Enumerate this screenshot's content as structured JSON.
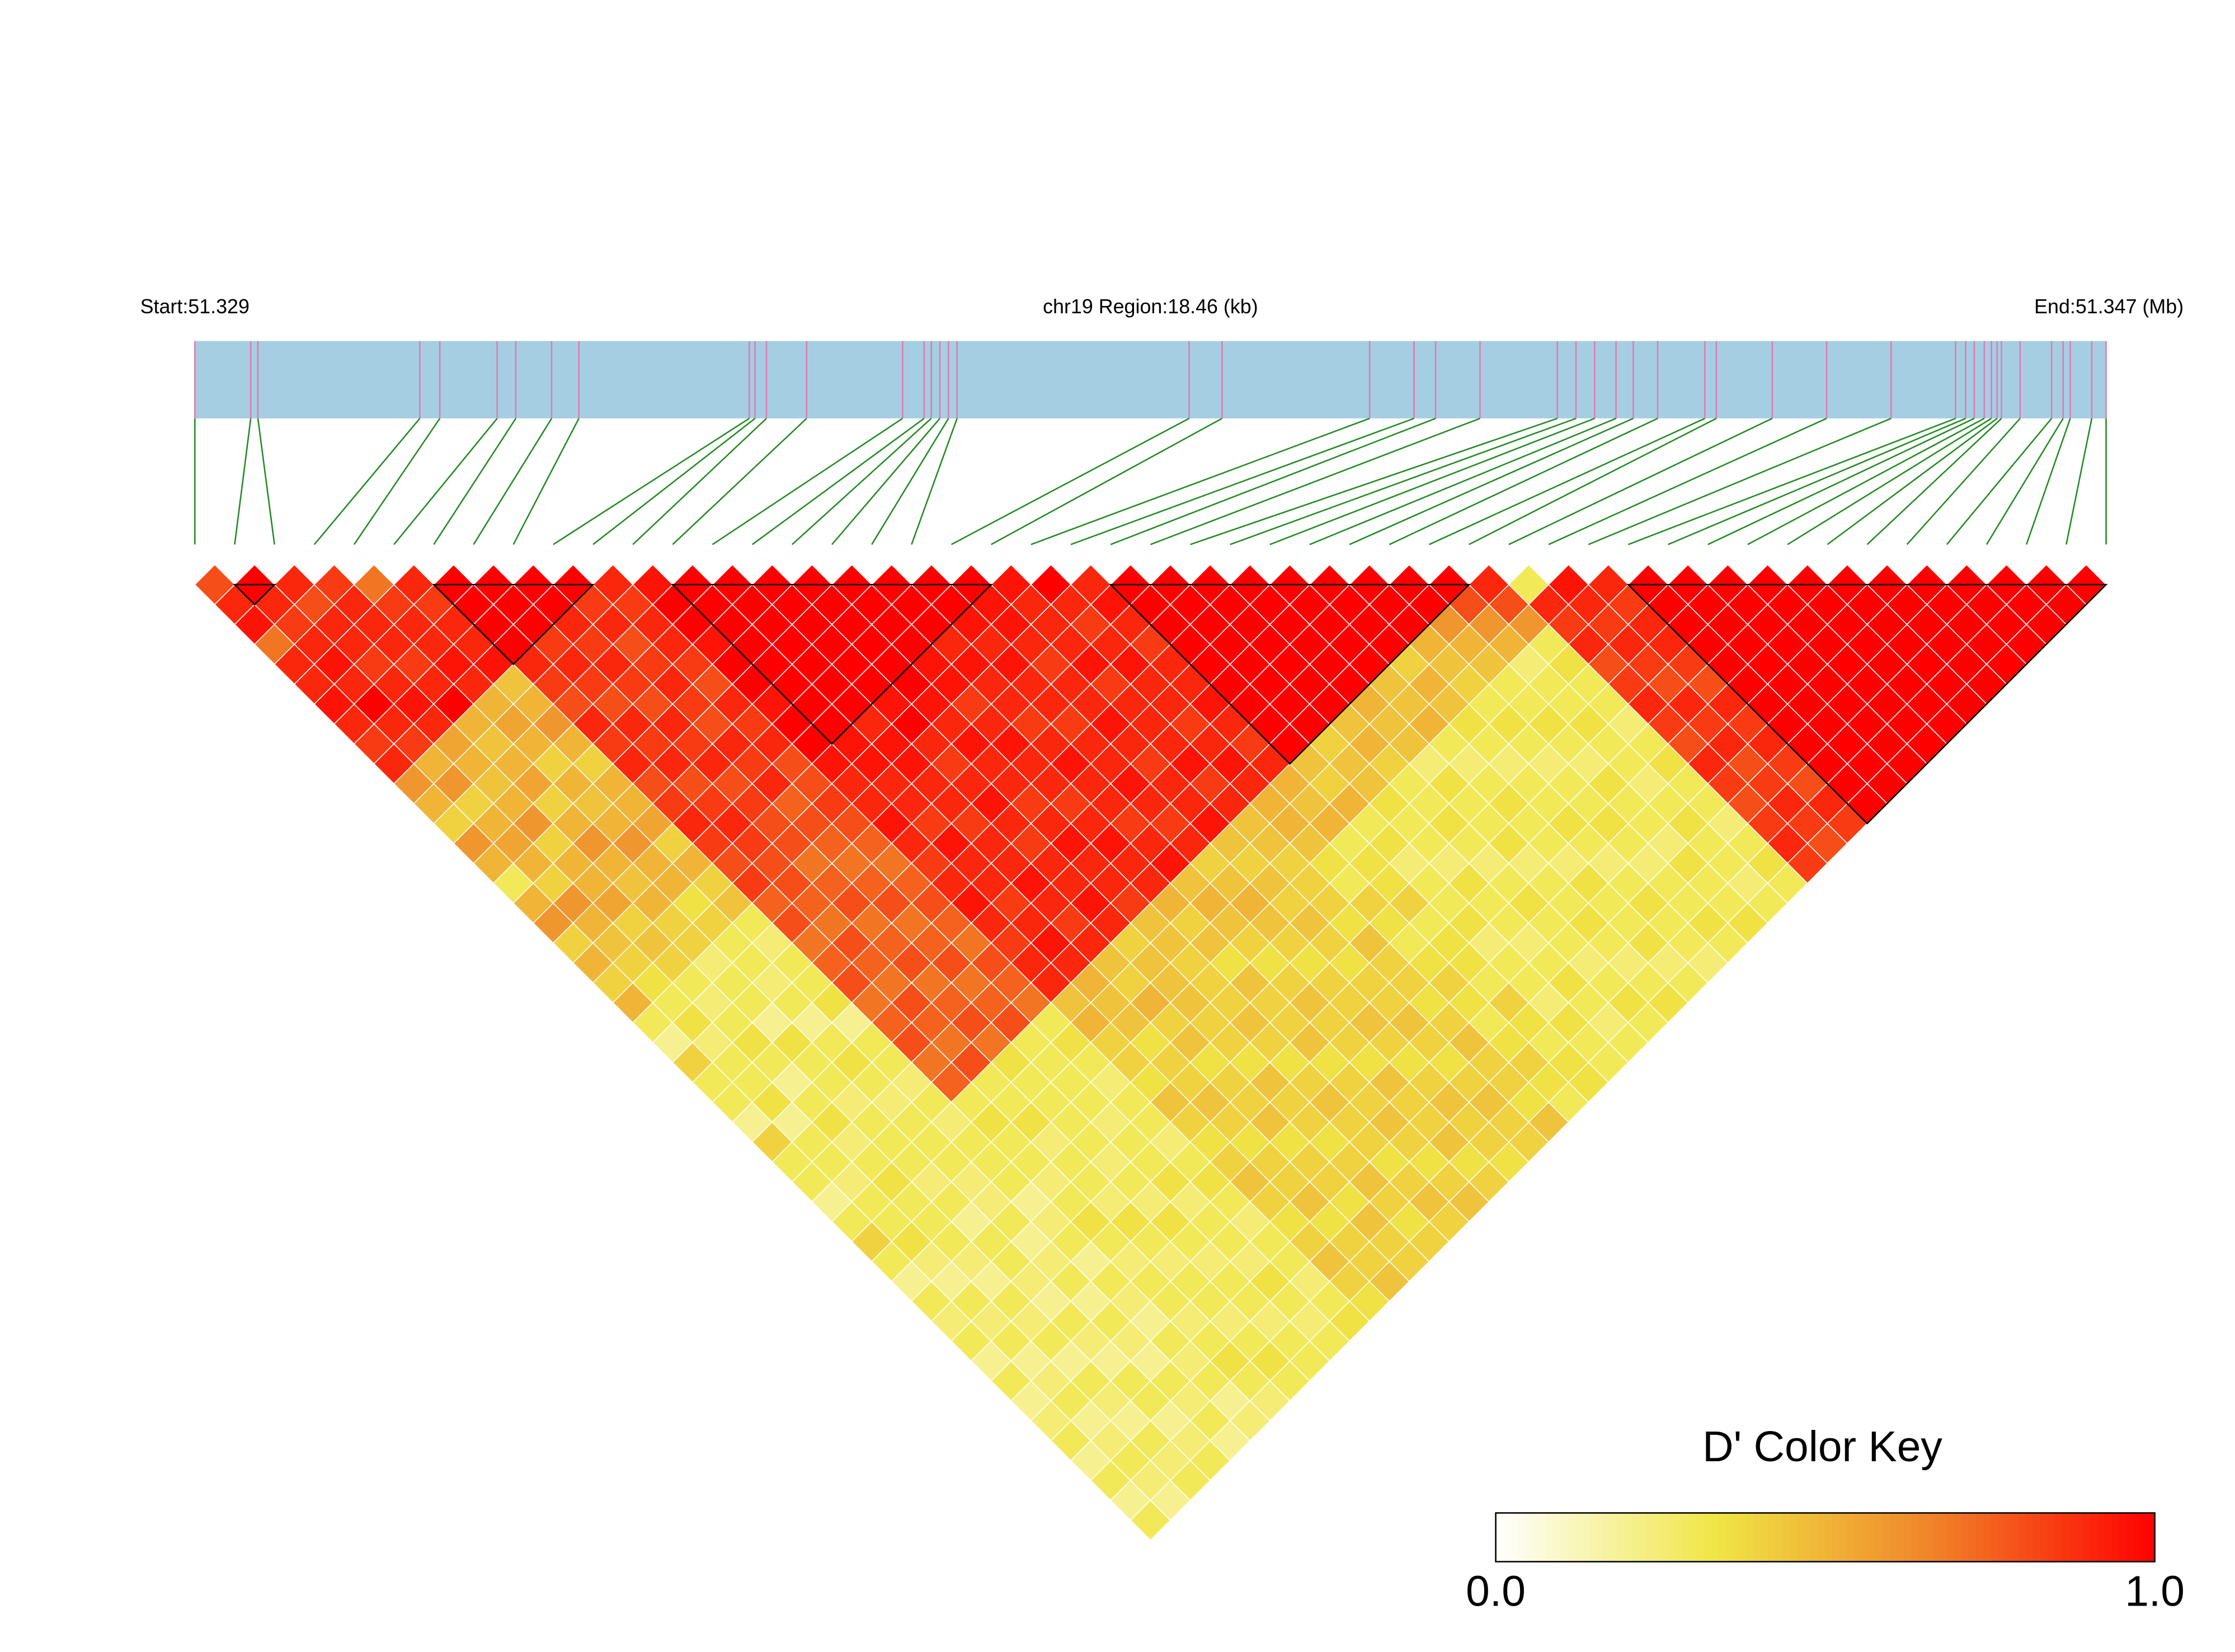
{
  "chart_data": {
    "type": "ld_heatmap",
    "start_label": "Start:51.329",
    "region_label": "chr19 Region:18.46 (kb)",
    "end_label": "End:51.347 (Mb)",
    "key_title": "D' Color Key",
    "xlim": [
      51.329,
      51.34746
    ],
    "snp_positions": [
      51.329,
      51.32954,
      51.329609,
      51.331173,
      51.331366,
      51.33192,
      51.3321,
      51.332446,
      51.332709,
      51.334355,
      51.334411,
      51.334521,
      51.334909,
      51.335836,
      51.336044,
      51.336113,
      51.336196,
      51.336279,
      51.336362,
      51.338604,
      51.338922,
      51.340347,
      51.340776,
      51.340984,
      51.341413,
      51.34216,
      51.34234,
      51.34252,
      51.342727,
      51.342893,
      51.343129,
      51.343585,
      51.343696,
      51.344236,
      51.344761,
      51.345384,
      51.346007,
      51.346104,
      51.346187,
      51.346284,
      51.346353,
      51.346408,
      51.34645,
      51.34663,
      51.346934,
      51.347045,
      51.347114,
      51.347322,
      51.34746
    ],
    "bar_color": "#a6cee3",
    "snp_line_color": "#e07ab0",
    "connector_color": "#228b22",
    "blocks": [
      {
        "start": 1,
        "end": 2
      },
      {
        "start": 6,
        "end": 10
      },
      {
        "start": 12,
        "end": 20
      },
      {
        "start": 23,
        "end": 32
      },
      {
        "start": 36,
        "end": 48
      }
    ],
    "clim": [
      0,
      1
    ],
    "cticks": [
      {
        "value": 0,
        "label": "0.0"
      },
      {
        "value": 1,
        "label": "1.0"
      }
    ],
    "colors": [
      "#ffffff",
      "#f0e646",
      "#f08228",
      "#ff0000"
    ],
    "dprime": [
      [
        0.8,
        0.9,
        0.95,
        0.7,
        0.9,
        0.9,
        0.95,
        0.9,
        0.85,
        0.9,
        0.6,
        0.5,
        0.4,
        0.6,
        0.5,
        0.3,
        0.5,
        0.6,
        0.4,
        0.5,
        0.4,
        0.5,
        0.3,
        0.2,
        0.4,
        0.3,
        0.3,
        0.2,
        0.4,
        0.3,
        0.3,
        0.2,
        0.3,
        0.4,
        0.3,
        0.2,
        0.3,
        0.25,
        0.3,
        0.2,
        0.3,
        0.2,
        0.25,
        0.3,
        0.2,
        0.3,
        0.2,
        0.3
      ],
      [
        1,
        0.9,
        0.85,
        0.9,
        0.95,
        0.9,
        1,
        0.9,
        0.85,
        0.5,
        0.6,
        0.4,
        0.5,
        0.55,
        0.5,
        0.4,
        0.6,
        0.5,
        0.45,
        0.4,
        0.35,
        0.3,
        0.35,
        0.25,
        0.3,
        0.3,
        0.35,
        0.2,
        0.3,
        0.3,
        0.25,
        0.3,
        0.3,
        0.35,
        0.25,
        0.2,
        0.3,
        0.25,
        0.3,
        0.2,
        0.25,
        0.3,
        0.2,
        0.25,
        0.3,
        0.25,
        0.2
      ],
      [
        0.9,
        0.8,
        0.9,
        0.9,
        0.85,
        0.9,
        0.95,
        0.9,
        0.55,
        0.5,
        0.45,
        0.5,
        0.6,
        0.4,
        0.5,
        0.5,
        0.55,
        0.4,
        0.45,
        0.4,
        0.3,
        0.25,
        0.3,
        0.35,
        0.3,
        0.2,
        0.3,
        0.35,
        0.25,
        0.3,
        0.35,
        0.3,
        0.3,
        0.3,
        0.25,
        0.2,
        0.3,
        0.25,
        0.3,
        0.2,
        0.3,
        0.25,
        0.2,
        0.3,
        0.25,
        0.3
      ],
      [
        0.85,
        0.9,
        0.9,
        0.9,
        0.85,
        0.9,
        1,
        0.5,
        0.45,
        0.5,
        0.55,
        0.4,
        0.5,
        0.6,
        0.5,
        0.45,
        0.5,
        0.4,
        0.4,
        0.25,
        0.3,
        0.3,
        0.2,
        0.35,
        0.3,
        0.3,
        0.25,
        0.3,
        0.3,
        0.3,
        0.25,
        0.3,
        0.2,
        0.3,
        0.3,
        0.25,
        0.2,
        0.3,
        0.25,
        0.2,
        0.3,
        0.3,
        0.2,
        0.25,
        0.3
      ],
      [
        0.7,
        0.85,
        0.9,
        0.9,
        0.95,
        0.9,
        0.5,
        0.55,
        0.5,
        0.4,
        0.5,
        0.45,
        0.5,
        0.6,
        0.5,
        0.5,
        0.35,
        0.4,
        0.3,
        0.3,
        0.25,
        0.3,
        0.2,
        0.3,
        0.35,
        0.3,
        0.25,
        0.3,
        0.3,
        0.3,
        0.25,
        0.25,
        0.3,
        0.2,
        0.25,
        0.3,
        0.2,
        0.3,
        0.25,
        0.2,
        0.3,
        0.25,
        0.3,
        0.2
      ],
      [
        0.9,
        0.85,
        0.9,
        0.9,
        0.95,
        0.45,
        0.5,
        0.6,
        0.5,
        0.4,
        0.5,
        0.5,
        0.55,
        0.4,
        0.5,
        0.4,
        0.45,
        0.3,
        0.25,
        0.3,
        0.3,
        0.35,
        0.2,
        0.3,
        0.3,
        0.25,
        0.3,
        0.25,
        0.3,
        0.3,
        0.3,
        0.2,
        0.25,
        0.3,
        0.2,
        0.3,
        0.25,
        0.2,
        0.3,
        0.25,
        0.3,
        0.2,
        0.25
      ],
      [
        1,
        1,
        1,
        1,
        0.9,
        0.85,
        0.8,
        0.9,
        0.85,
        0.9,
        0.8,
        0.85,
        0.9,
        0.85,
        0.8,
        0.85,
        0.75,
        0.8,
        0.7,
        0.75,
        0.8,
        0.7,
        0.75,
        0.8,
        0.7,
        0.75,
        0.3,
        0.35,
        0.3,
        0.3,
        0.25,
        0.3,
        0.35,
        0.3,
        0.25,
        0.3,
        0.3,
        0.25,
        0.3,
        0.35,
        0.3,
        0.25
      ],
      [
        1,
        1,
        1,
        0.85,
        0.9,
        0.85,
        0.8,
        0.9,
        0.85,
        0.9,
        0.8,
        0.85,
        0.9,
        0.85,
        0.8,
        0.8,
        0.75,
        0.7,
        0.8,
        0.75,
        0.7,
        0.8,
        0.75,
        0.7,
        0.8,
        0.3,
        0.3,
        0.35,
        0.25,
        0.3,
        0.3,
        0.25,
        0.35,
        0.3,
        0.25,
        0.3,
        0.3,
        0.25,
        0.3,
        0.35,
        0.3
      ],
      [
        1,
        1,
        0.9,
        0.85,
        0.9,
        0.85,
        0.8,
        0.9,
        0.85,
        0.9,
        0.8,
        0.85,
        0.8,
        0.8,
        0.7,
        0.75,
        0.8,
        0.7,
        0.75,
        0.8,
        0.7,
        0.75,
        0.8,
        0.7,
        0.35,
        0.3,
        0.3,
        0.3,
        0.3,
        0.25,
        0.3,
        0.25,
        0.35,
        0.3,
        0.25,
        0.3,
        0.3,
        0.25,
        0.3,
        0.3
      ],
      [
        1,
        0.85,
        0.9,
        0.8,
        0.85,
        0.9,
        0.85,
        0.8,
        0.9,
        0.85,
        0.9,
        0.75,
        0.8,
        0.75,
        0.7,
        0.75,
        0.8,
        0.7,
        0.75,
        0.8,
        0.7,
        0.75,
        0.8,
        0.3,
        0.3,
        0.3,
        0.3,
        0.25,
        0.3,
        0.3,
        0.35,
        0.25,
        0.3,
        0.3,
        0.25,
        0.35,
        0.3,
        0.25,
        0.3
      ],
      [
        0.9,
        0.85,
        0.9,
        0.9,
        0.85,
        0.8,
        0.9,
        0.85,
        0.9,
        0.8,
        0.8,
        0.85,
        0.8,
        0.75,
        0.7,
        0.75,
        0.8,
        0.75,
        0.7,
        0.8,
        0.75,
        0.7,
        0.3,
        0.35,
        0.3,
        0.25,
        0.3,
        0.3,
        0.25,
        0.3,
        0.35,
        0.3,
        0.25,
        0.3,
        0.3,
        0.25,
        0.3,
        0.35
      ],
      [
        0.95,
        1,
        1,
        0.95,
        1,
        1,
        0.95,
        1,
        1,
        0.95,
        0.9,
        0.9,
        0.95,
        0.9,
        0.85,
        0.9,
        0.95,
        0.9,
        0.85,
        0.9,
        0.9,
        0.45,
        0.5,
        0.4,
        0.4,
        0.35,
        0.45,
        0.4,
        0.35,
        0.4,
        0.45,
        0.4,
        0.35,
        0.4,
        0.45,
        0.4,
        0.35
      ],
      [
        1,
        1,
        1,
        1,
        1,
        1,
        1,
        1,
        0.95,
        0.95,
        0.9,
        0.9,
        0.85,
        0.95,
        0.9,
        0.9,
        0.85,
        0.9,
        0.95,
        0.9,
        0.5,
        0.45,
        0.45,
        0.35,
        0.4,
        0.4,
        0.45,
        0.4,
        0.35,
        0.4,
        0.4,
        0.45,
        0.35,
        0.4,
        0.4,
        0.45
      ],
      [
        1,
        1,
        1,
        1,
        1,
        1,
        1,
        0.9,
        0.95,
        0.95,
        0.9,
        0.9,
        0.85,
        0.9,
        0.9,
        0.95,
        0.9,
        0.85,
        0.9,
        0.45,
        0.4,
        0.5,
        0.4,
        0.45,
        0.35,
        0.4,
        0.4,
        0.45,
        0.35,
        0.4,
        0.4,
        0.35,
        0.45,
        0.4,
        0.4
      ],
      [
        1,
        1,
        1,
        1,
        1,
        1,
        0.95,
        1,
        0.9,
        0.85,
        0.9,
        0.95,
        0.9,
        0.85,
        0.9,
        0.9,
        0.95,
        0.9,
        0.4,
        0.45,
        0.45,
        0.45,
        0.4,
        0.4,
        0.35,
        0.45,
        0.4,
        0.4,
        0.35,
        0.4,
        0.45,
        0.4,
        0.35,
        0.4
      ],
      [
        1,
        1,
        1,
        1,
        1,
        1,
        0.95,
        0.9,
        0.95,
        0.9,
        0.9,
        0.85,
        0.9,
        0.95,
        0.9,
        0.9,
        0.85,
        0.45,
        0.45,
        0.4,
        0.4,
        0.4,
        0.45,
        0.4,
        0.35,
        0.4,
        0.45,
        0.4,
        0.4,
        0.35,
        0.4,
        0.45,
        0.4
      ],
      [
        1,
        1,
        1,
        1,
        0.95,
        0.95,
        0.85,
        0.9,
        0.95,
        0.9,
        0.9,
        0.85,
        0.9,
        0.95,
        0.9,
        0.9,
        0.5,
        0.4,
        0.45,
        0.35,
        0.45,
        0.4,
        0.4,
        0.45,
        0.35,
        0.4,
        0.4,
        0.45,
        0.4,
        0.35,
        0.4,
        0.45
      ],
      [
        1,
        1,
        1,
        0.9,
        0.95,
        0.9,
        0.9,
        0.85,
        0.9,
        0.95,
        0.9,
        0.9,
        0.85,
        0.9,
        0.95,
        0.45,
        0.5,
        0.45,
        0.4,
        0.35,
        0.4,
        0.45,
        0.4,
        0.4,
        0.35,
        0.45,
        0.4,
        0.4,
        0.45,
        0.35,
        0.4
      ],
      [
        1,
        1,
        0.95,
        0.9,
        0.95,
        0.9,
        0.9,
        0.85,
        0.9,
        0.9,
        0.95,
        0.9,
        0.85,
        0.9,
        0.4,
        0.45,
        0.5,
        0.45,
        0.4,
        0.35,
        0.4,
        0.4,
        0.45,
        0.4,
        0.35,
        0.4,
        0.45,
        0.4,
        0.4,
        0.35
      ],
      [
        1,
        0.95,
        0.95,
        0.9,
        0.85,
        0.9,
        0.9,
        0.95,
        0.9,
        0.85,
        0.9,
        0.9,
        0.95,
        0.45,
        0.4,
        0.45,
        0.4,
        0.45,
        0.4,
        0.35,
        0.4,
        0.4,
        0.45,
        0.4,
        0.35,
        0.4,
        0.45,
        0.4,
        0.4
      ],
      [
        0.95,
        0.9,
        0.9,
        0.9,
        0.95,
        0.85,
        0.9,
        0.9,
        0.9,
        0.95,
        0.85,
        0.9,
        0.45,
        0.45,
        0.4,
        0.4,
        0.4,
        0.35,
        0.45,
        0.4,
        0.4,
        0.35,
        0.4,
        0.45,
        0.4,
        0.4,
        0.35,
        0.45
      ],
      [
        1,
        0.9,
        0.85,
        0.9,
        0.95,
        0.9,
        0.9,
        0.85,
        0.9,
        0.95,
        0.9,
        0.5,
        0.5,
        0.45,
        0.35,
        0.3,
        0.4,
        0.35,
        0.3,
        0.35,
        0.4,
        0.35,
        0.3,
        0.35,
        0.4,
        0.35,
        0.3
      ],
      [
        0.9,
        0.95,
        0.9,
        0.85,
        0.9,
        0.9,
        0.95,
        0.9,
        0.85,
        0.9,
        0.5,
        0.45,
        0.5,
        0.3,
        0.35,
        0.35,
        0.4,
        0.3,
        0.35,
        0.35,
        0.3,
        0.4,
        0.35,
        0.3,
        0.35,
        0.35
      ],
      [
        1,
        1,
        1,
        1,
        1,
        1,
        1,
        1,
        1,
        0.45,
        0.4,
        0.5,
        0.3,
        0.35,
        0.25,
        0.3,
        0.3,
        0.35,
        0.25,
        0.3,
        0.3,
        0.25,
        0.35,
        0.3,
        0.3
      ],
      [
        1,
        1,
        1,
        1,
        1,
        1,
        1,
        1,
        0.4,
        0.45,
        0.45,
        0.35,
        0.3,
        0.3,
        0.25,
        0.35,
        0.3,
        0.3,
        0.25,
        0.3,
        0.35,
        0.3,
        0.25,
        0.3
      ],
      [
        1,
        1,
        1,
        1,
        1,
        1,
        1,
        0.45,
        0.5,
        0.4,
        0.3,
        0.3,
        0.35,
        0.3,
        0.25,
        0.3,
        0.35,
        0.3,
        0.3,
        0.25,
        0.3,
        0.35,
        0.3
      ],
      [
        1,
        1,
        1,
        1,
        1,
        1,
        0.5,
        0.45,
        0.45,
        0.25,
        0.35,
        0.3,
        0.3,
        0.35,
        0.25,
        0.3,
        0.3,
        0.35,
        0.3,
        0.25,
        0.3,
        0.35
      ],
      [
        1,
        1,
        1,
        1,
        1,
        0.45,
        0.45,
        0.5,
        0.3,
        0.25,
        0.3,
        0.35,
        0.3,
        0.3,
        0.25,
        0.35,
        0.3,
        0.3,
        0.35,
        0.25,
        0.3
      ],
      [
        1,
        1,
        1,
        1,
        0.4,
        0.5,
        0.45,
        0.35,
        0.3,
        0.25,
        0.3,
        0.3,
        0.35,
        0.3,
        0.25,
        0.3,
        0.35,
        0.3,
        0.3,
        0.25
      ],
      [
        1,
        1,
        1,
        0.5,
        0.45,
        0.4,
        0.3,
        0.35,
        0.3,
        0.25,
        0.3,
        0.3,
        0.35,
        0.3,
        0.25,
        0.3,
        0.3,
        0.35,
        0.3
      ],
      [
        1,
        1,
        0.6,
        0.5,
        0.45,
        0.3,
        0.3,
        0.35,
        0.3,
        0.25,
        0.35,
        0.3,
        0.3,
        0.25,
        0.35,
        0.3,
        0.3,
        0.35
      ],
      [
        1,
        0.8,
        0.6,
        0.5,
        0.25,
        0.3,
        0.3,
        0.35,
        0.3,
        0.3,
        0.25,
        0.3,
        0.35,
        0.3,
        0.3,
        0.25,
        0.3
      ],
      [
        0.9,
        0.8,
        0.6,
        0.3,
        0.35,
        0.3,
        0.3,
        0.25,
        0.3,
        0.35,
        0.3,
        0.3,
        0.25,
        0.3,
        0.35,
        0.3
      ],
      [
        0.3,
        0.9,
        0.85,
        0.9,
        0.8,
        0.85,
        0.9,
        0.85,
        0.8,
        0.9,
        0.85,
        0.8,
        0.85,
        0.9,
        0.85
      ],
      [
        0.95,
        0.9,
        0.85,
        0.9,
        0.85,
        0.8,
        0.9,
        0.85,
        0.9,
        0.8,
        0.85,
        0.9,
        0.85,
        0.8
      ],
      [
        0.9,
        0.85,
        0.9,
        0.9,
        0.85,
        0.8,
        0.9,
        0.85,
        0.9,
        0.85,
        0.8,
        0.9,
        0.85
      ],
      [
        1,
        1,
        1,
        1,
        1,
        1,
        1,
        1,
        1,
        1,
        1,
        1
      ],
      [
        1,
        1,
        1,
        1,
        1,
        1,
        1,
        1,
        1,
        1,
        1
      ],
      [
        1,
        1,
        1,
        1,
        1,
        1,
        1,
        1,
        1,
        1
      ],
      [
        1,
        1,
        1,
        1,
        1,
        1,
        1,
        1,
        1
      ],
      [
        1,
        1,
        1,
        1,
        1,
        1,
        1,
        1
      ],
      [
        1,
        1,
        1,
        1,
        1,
        1,
        1
      ],
      [
        1,
        1,
        1,
        1,
        1,
        1
      ],
      [
        1,
        1,
        1,
        1,
        1
      ],
      [
        1,
        1,
        1,
        1
      ],
      [
        1,
        1,
        1
      ],
      [
        1,
        1
      ],
      [
        1
      ]
    ]
  }
}
